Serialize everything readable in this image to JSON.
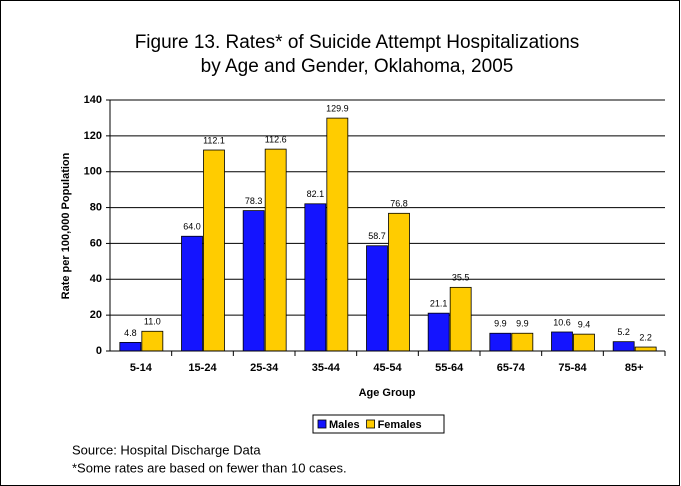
{
  "chart_data": {
    "type": "bar",
    "title": [
      "Figure 13. Rates* of Suicide Attempt Hospitalizations",
      "by Age and Gender, Oklahoma, 2005"
    ],
    "x_label": "Age Group",
    "y_label": "Rate per 100,000 Population",
    "categories": [
      "5-14",
      "15-24",
      "25-34",
      "35-44",
      "45-54",
      "55-64",
      "65-74",
      "75-84",
      "85+"
    ],
    "series": [
      {
        "name": "Males",
        "color": "#1414ff",
        "values": [
          4.8,
          64,
          78.3,
          82.1,
          58.7,
          21.1,
          9.9,
          10.6,
          5.2
        ],
        "value_labels": [
          "4.8",
          "64.0",
          "78.3",
          "82.1",
          "58.7",
          "21.1",
          "9.9",
          "10.6",
          "5.2"
        ]
      },
      {
        "name": "Females",
        "color": "#ffcc00",
        "values": [
          11,
          112.1,
          112.6,
          129.9,
          76.8,
          35.5,
          9.9,
          9.4,
          2.2
        ],
        "value_labels": [
          "11.0",
          "112.1",
          "112.6",
          "129.9",
          "76.8",
          "35.5",
          "9.9",
          "9.4",
          "2.2"
        ]
      }
    ],
    "ylim": [
      0,
      140
    ],
    "yticks": [
      0,
      20,
      40,
      60,
      80,
      100,
      120,
      140
    ],
    "grid": true,
    "legend": "bottom",
    "notes": [
      "Source: Hospital Discharge Data",
      "*Some rates are based on fewer than 10 cases."
    ]
  }
}
